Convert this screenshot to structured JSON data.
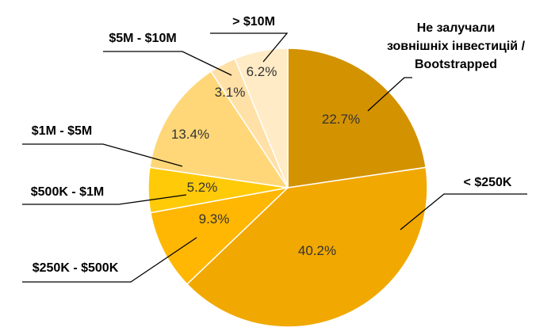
{
  "chart_data": {
    "type": "pie",
    "title": "",
    "slices": [
      {
        "label": "Не залучали зовнішніх інвестицій / Bootstrapped",
        "label_lines": [
          "Не залучали",
          "зовнішніх інвестицій /",
          "Bootstrapped"
        ],
        "value": 22.7,
        "display": "22.7%",
        "color": "#D39200"
      },
      {
        "label": "< $250K",
        "label_lines": [
          "< $250K"
        ],
        "value": 40.2,
        "display": "40.2%",
        "color": "#F1A800"
      },
      {
        "label": "$250K - $500K",
        "label_lines": [
          "$250K - $500K"
        ],
        "value": 9.3,
        "display": "9.3%",
        "color": "#FFB703"
      },
      {
        "label": "$500K - $1M",
        "label_lines": [
          "$500K - $1M"
        ],
        "value": 5.2,
        "display": "5.2%",
        "color": "#FFCA08"
      },
      {
        "label": "$1M - $5M",
        "label_lines": [
          "$1M - $5M"
        ],
        "value": 13.4,
        "display": "13.4%",
        "color": "#FFD778"
      },
      {
        "label": "$5M - $10M",
        "label_lines": [
          "$5M - $10M"
        ],
        "value": 3.1,
        "display": "3.1%",
        "color": "#FFE0A6"
      },
      {
        "label": "> $10M",
        "label_lines": [
          "> $10M"
        ],
        "value": 6.2,
        "display": "6.2%",
        "color": "#FFEBC5"
      }
    ],
    "legend": "none",
    "data_labels": "inside",
    "category_labels": "outside with leader lines"
  }
}
